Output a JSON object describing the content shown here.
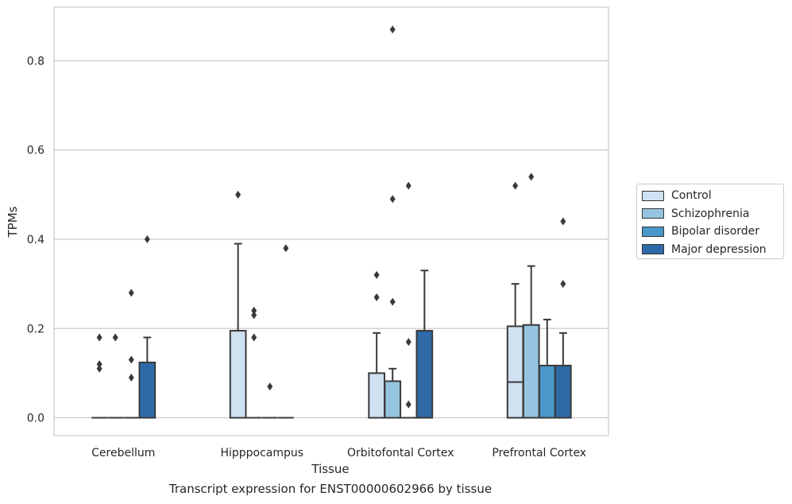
{
  "caption": "Transcript expression for ENST00000602966 by tissue",
  "legend_items": [
    {
      "label": "Control",
      "color": "#d0e1f2"
    },
    {
      "label": "Schizophrenia",
      "color": "#94c4df"
    },
    {
      "label": "Bipolar disorder",
      "color": "#4a98c9"
    },
    {
      "label": "Major depression",
      "color": "#2f6aa8"
    }
  ],
  "chart_data": {
    "type": "box",
    "xlabel": "Tissue",
    "ylabel": "TPMs",
    "ylim": [
      -0.04,
      0.92
    ],
    "yticks": [
      0.0,
      0.2,
      0.4,
      0.6,
      0.8
    ],
    "ytick_labels": [
      "0.0",
      "0.2",
      "0.4",
      "0.6",
      "0.8"
    ],
    "grid": "horizontal",
    "legend_position": "right",
    "categories": [
      "Cerebellum",
      "Hipppocampus",
      "Orbitofontal Cortex",
      "Prefrontal Cortex"
    ],
    "series": [
      {
        "name": "Control",
        "color": "#d0e1f2",
        "boxes": [
          {
            "q1": 0,
            "median": 0,
            "q3": 0,
            "whislo": 0,
            "whishi": 0,
            "fliers": [
              0.18,
              0.12,
              0.11
            ]
          },
          {
            "q1": 0,
            "median": 0,
            "q3": 0.195,
            "whislo": 0,
            "whishi": 0.39,
            "fliers": [
              0.5
            ]
          },
          {
            "q1": 0,
            "median": 0,
            "q3": 0.1,
            "whislo": 0,
            "whishi": 0.19,
            "fliers": [
              0.32,
              0.27
            ]
          },
          {
            "q1": 0,
            "median": 0.08,
            "q3": 0.205,
            "whislo": 0,
            "whishi": 0.3,
            "fliers": [
              0.52
            ]
          }
        ]
      },
      {
        "name": "Schizophrenia",
        "color": "#94c4df",
        "boxes": [
          {
            "q1": 0,
            "median": 0,
            "q3": 0,
            "whislo": 0,
            "whishi": 0,
            "fliers": [
              0.18
            ]
          },
          {
            "q1": 0,
            "median": 0,
            "q3": 0,
            "whislo": 0,
            "whishi": 0,
            "fliers": [
              0.24,
              0.23,
              0.18
            ]
          },
          {
            "q1": 0,
            "median": 0,
            "q3": 0.082,
            "whislo": 0,
            "whishi": 0.11,
            "fliers": [
              0.87,
              0.49,
              0.26
            ]
          },
          {
            "q1": 0,
            "median": 0,
            "q3": 0.208,
            "whislo": 0,
            "whishi": 0.34,
            "fliers": [
              0.54
            ]
          }
        ]
      },
      {
        "name": "Bipolar disorder",
        "color": "#4a98c9",
        "boxes": [
          {
            "q1": 0,
            "median": 0,
            "q3": 0,
            "whislo": 0,
            "whishi": 0,
            "fliers": [
              0.28,
              0.13,
              0.09
            ]
          },
          {
            "q1": 0,
            "median": 0,
            "q3": 0,
            "whislo": 0,
            "whishi": 0,
            "fliers": [
              0.07
            ]
          },
          {
            "q1": 0,
            "median": 0,
            "q3": 0,
            "whislo": 0,
            "whishi": 0,
            "fliers": [
              0.52,
              0.17,
              0.03
            ]
          },
          {
            "q1": 0,
            "median": 0,
            "q3": 0.117,
            "whislo": 0,
            "whishi": 0.22,
            "fliers": []
          }
        ]
      },
      {
        "name": "Major depression",
        "color": "#2f6aa8",
        "boxes": [
          {
            "q1": 0,
            "median": 0,
            "q3": 0.124,
            "whislo": 0,
            "whishi": 0.18,
            "fliers": [
              0.4
            ]
          },
          {
            "q1": 0,
            "median": 0,
            "q3": 0,
            "whislo": 0,
            "whishi": 0,
            "fliers": [
              0.38
            ]
          },
          {
            "q1": 0,
            "median": 0,
            "q3": 0.195,
            "whislo": 0,
            "whishi": 0.33,
            "fliers": []
          },
          {
            "q1": 0,
            "median": 0,
            "q3": 0.117,
            "whislo": 0,
            "whishi": 0.19,
            "fliers": [
              0.44,
              0.3
            ]
          }
        ]
      }
    ]
  }
}
